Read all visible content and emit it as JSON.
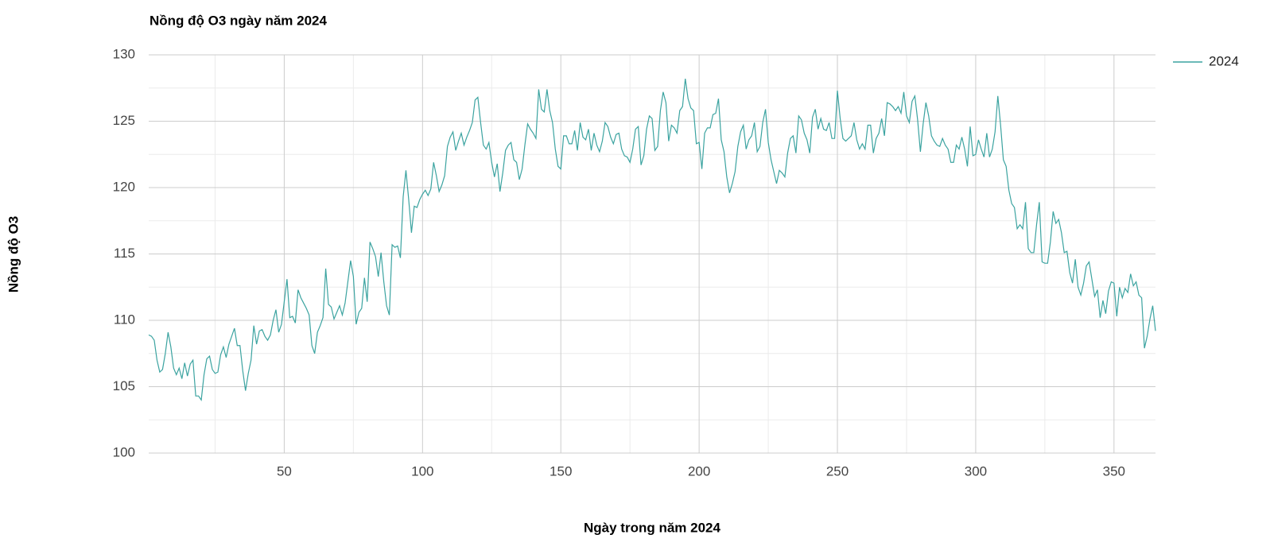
{
  "chart_data": {
    "type": "line",
    "title": "Nồng độ O3 ngày năm 2024",
    "x_label": "Ngày trong năm 2024",
    "y_label": "Nồng độ O3",
    "xlim": [
      1,
      365
    ],
    "ylim": [
      100,
      130
    ],
    "xticks": [
      50,
      100,
      150,
      200,
      250,
      300,
      350
    ],
    "yticks": [
      100,
      105,
      110,
      115,
      120,
      125,
      130
    ],
    "xminorticks": [
      25,
      75,
      125,
      175,
      225,
      275,
      325
    ],
    "yminorticks": [
      102.5,
      107.5,
      112.5,
      117.5,
      122.5,
      127.5
    ],
    "grid": true,
    "legend_position": "right",
    "x": [
      1,
      2,
      3,
      4,
      5,
      6,
      7,
      8,
      9,
      10,
      11,
      12,
      13,
      14,
      15,
      16,
      17,
      18,
      19,
      20,
      21,
      22,
      23,
      24,
      25,
      26,
      27,
      28,
      29,
      30,
      31,
      32,
      33,
      34,
      35,
      36,
      37,
      38,
      39,
      40,
      41,
      42,
      43,
      44,
      45,
      46,
      47,
      48,
      49,
      50,
      51,
      52,
      53,
      54,
      55,
      56,
      57,
      58,
      59,
      60,
      61,
      62,
      63,
      64,
      65,
      66,
      67,
      68,
      69,
      70,
      71,
      72,
      73,
      74,
      75,
      76,
      77,
      78,
      79,
      80,
      81,
      82,
      83,
      84,
      85,
      86,
      87,
      88,
      89,
      90,
      91,
      92,
      93,
      94,
      95,
      96,
      97,
      98,
      99,
      100,
      101,
      102,
      103,
      104,
      105,
      106,
      107,
      108,
      109,
      110,
      111,
      112,
      113,
      114,
      115,
      116,
      117,
      118,
      119,
      120,
      121,
      122,
      123,
      124,
      125,
      126,
      127,
      128,
      129,
      130,
      131,
      132,
      133,
      134,
      135,
      136,
      137,
      138,
      139,
      140,
      141,
      142,
      143,
      144,
      145,
      146,
      147,
      148,
      149,
      150,
      151,
      152,
      153,
      154,
      155,
      156,
      157,
      158,
      159,
      160,
      161,
      162,
      163,
      164,
      165,
      166,
      167,
      168,
      169,
      170,
      171,
      172,
      173,
      174,
      175,
      176,
      177,
      178,
      179,
      180,
      181,
      182,
      183,
      184,
      185,
      186,
      187,
      188,
      189,
      190,
      191,
      192,
      193,
      194,
      195,
      196,
      197,
      198,
      199,
      200,
      201,
      202,
      203,
      204,
      205,
      206,
      207,
      208,
      209,
      210,
      211,
      212,
      213,
      214,
      215,
      216,
      217,
      218,
      219,
      220,
      221,
      222,
      223,
      224,
      225,
      226,
      227,
      228,
      229,
      230,
      231,
      232,
      233,
      234,
      235,
      236,
      237,
      238,
      239,
      240,
      241,
      242,
      243,
      244,
      245,
      246,
      247,
      248,
      249,
      250,
      251,
      252,
      253,
      254,
      255,
      256,
      257,
      258,
      259,
      260,
      261,
      262,
      263,
      264,
      265,
      266,
      267,
      268,
      269,
      270,
      271,
      272,
      273,
      274,
      275,
      276,
      277,
      278,
      279,
      280,
      281,
      282,
      283,
      284,
      285,
      286,
      287,
      288,
      289,
      290,
      291,
      292,
      293,
      294,
      295,
      296,
      297,
      298,
      299,
      300,
      301,
      302,
      303,
      304,
      305,
      306,
      307,
      308,
      309,
      310,
      311,
      312,
      313,
      314,
      315,
      316,
      317,
      318,
      319,
      320,
      321,
      322,
      323,
      324,
      325,
      326,
      327,
      328,
      329,
      330,
      331,
      332,
      333,
      334,
      335,
      336,
      337,
      338,
      339,
      340,
      341,
      342,
      343,
      344,
      345,
      346,
      347,
      348,
      349,
      350,
      351,
      352,
      353,
      354,
      355,
      356,
      357,
      358,
      359,
      360,
      361,
      362,
      363,
      364,
      365
    ],
    "series": [
      {
        "name": "2024",
        "color": "#3ba3a0",
        "values": [
          108.9,
          108.8,
          108.5,
          107,
          106.1,
          106.3,
          107.5,
          109.1,
          108,
          106.4,
          105.9,
          106.4,
          105.6,
          106.8,
          105.8,
          106.7,
          107,
          104.3,
          104.3,
          104,
          105.9,
          107.1,
          107.3,
          106.3,
          106,
          106.1,
          107.4,
          108,
          107.2,
          108.2,
          108.8,
          109.4,
          108.1,
          108.1,
          106.2,
          104.7,
          106,
          107,
          109.6,
          108.2,
          109.2,
          109.3,
          108.8,
          108.5,
          108.9,
          110,
          110.8,
          109.1,
          109.7,
          111.4,
          113.1,
          110.2,
          110.3,
          109.8,
          112.3,
          111.7,
          111.3,
          110.9,
          110.4,
          108.1,
          107.5,
          109.1,
          109.6,
          110.2,
          113.9,
          111.2,
          111,
          110.1,
          110.6,
          111.1,
          110.4,
          111.3,
          112.9,
          114.5,
          113.3,
          109.7,
          110.6,
          110.9,
          113.2,
          111.4,
          115.9,
          115.4,
          114.8,
          113.3,
          115.1,
          112.9,
          111.1,
          110.4,
          115.7,
          115.5,
          115.6,
          114.7,
          119.3,
          121.3,
          119.1,
          116.6,
          118.6,
          118.5,
          119.1,
          119.5,
          119.8,
          119.4,
          119.9,
          121.9,
          120.9,
          119.7,
          120.2,
          120.9,
          123.1,
          123.8,
          124.2,
          122.8,
          123.5,
          124.1,
          123.2,
          123.8,
          124.3,
          124.9,
          126.6,
          126.8,
          124.9,
          123.2,
          122.9,
          123.4,
          121.9,
          120.8,
          121.8,
          119.7,
          121.1,
          122.8,
          123.2,
          123.4,
          122.1,
          121.9,
          120.6,
          121.4,
          123.2,
          124.8,
          124.4,
          124.1,
          123.7,
          127.4,
          125.9,
          125.7,
          127.4,
          125.8,
          124.9,
          122.9,
          121.6,
          121.4,
          123.9,
          123.9,
          123.3,
          123.3,
          124.3,
          122.8,
          124.9,
          123.8,
          123.6,
          124.4,
          122.8,
          124.1,
          123.2,
          122.7,
          123.5,
          124.9,
          124.6,
          123.8,
          123.3,
          124,
          124.1,
          122.9,
          122.4,
          122.3,
          121.9,
          122.9,
          124.4,
          124.6,
          121.7,
          122.4,
          124.4,
          125.4,
          125.2,
          122.8,
          123.1,
          125.8,
          127.2,
          126.4,
          123.5,
          124.7,
          124.5,
          124.1,
          125.8,
          126.1,
          128.2,
          126.7,
          126,
          125.8,
          123.3,
          123.4,
          121.4,
          124.1,
          124.5,
          124.5,
          125.5,
          125.6,
          126.7,
          123.6,
          122.7,
          120.8,
          119.6,
          120.3,
          121.2,
          123.1,
          124.2,
          124.7,
          122.9,
          123.6,
          123.9,
          124.9,
          122.7,
          123.1,
          124.9,
          125.9,
          123.4,
          122.1,
          121.2,
          120.3,
          121.3,
          121.1,
          120.8,
          122.6,
          123.7,
          123.9,
          122.6,
          125.4,
          125.1,
          124.1,
          123.6,
          122.6,
          125.3,
          125.9,
          124.4,
          125.2,
          124.4,
          124.3,
          124.9,
          123.7,
          123.7,
          127.3,
          125.2,
          123.7,
          123.5,
          123.7,
          123.9,
          124.9,
          123.6,
          122.9,
          123.3,
          122.9,
          124.7,
          124.7,
          122.6,
          123.7,
          124.1,
          125.2,
          123.9,
          126.4,
          126.3,
          126.1,
          125.8,
          126.1,
          125.6,
          127.2,
          125.4,
          124.9,
          126.5,
          126.9,
          125.1,
          122.7,
          124.8,
          126.4,
          125.4,
          123.9,
          123.5,
          123.2,
          123.1,
          123.7,
          123.2,
          122.9,
          121.9,
          121.9,
          123.2,
          122.9,
          123.8,
          122.9,
          121.6,
          124.6,
          122.4,
          122.5,
          123.6,
          122.9,
          122.3,
          124.1,
          122.3,
          122.9,
          124.2,
          126.9,
          124.7,
          122.1,
          121.6,
          119.8,
          118.8,
          118.5,
          116.9,
          117.2,
          116.9,
          118.9,
          115.4,
          115.1,
          115.1,
          117.2,
          118.9,
          114.4,
          114.3,
          114.3,
          115.9,
          118.2,
          117.3,
          117.6,
          116.6,
          115.1,
          115.2,
          113.6,
          112.8,
          114.6,
          112.5,
          111.9,
          112.8,
          114.1,
          114.4,
          113.1,
          111.8,
          112.3,
          110.2,
          111.5,
          110.5,
          112.2,
          112.9,
          112.8,
          110.3,
          112.5,
          111.7,
          112.4,
          112.1,
          113.5,
          112.6,
          112.9,
          111.9,
          111.7,
          107.9,
          108.8,
          110.1,
          111.1,
          109.2
        ]
      }
    ]
  }
}
